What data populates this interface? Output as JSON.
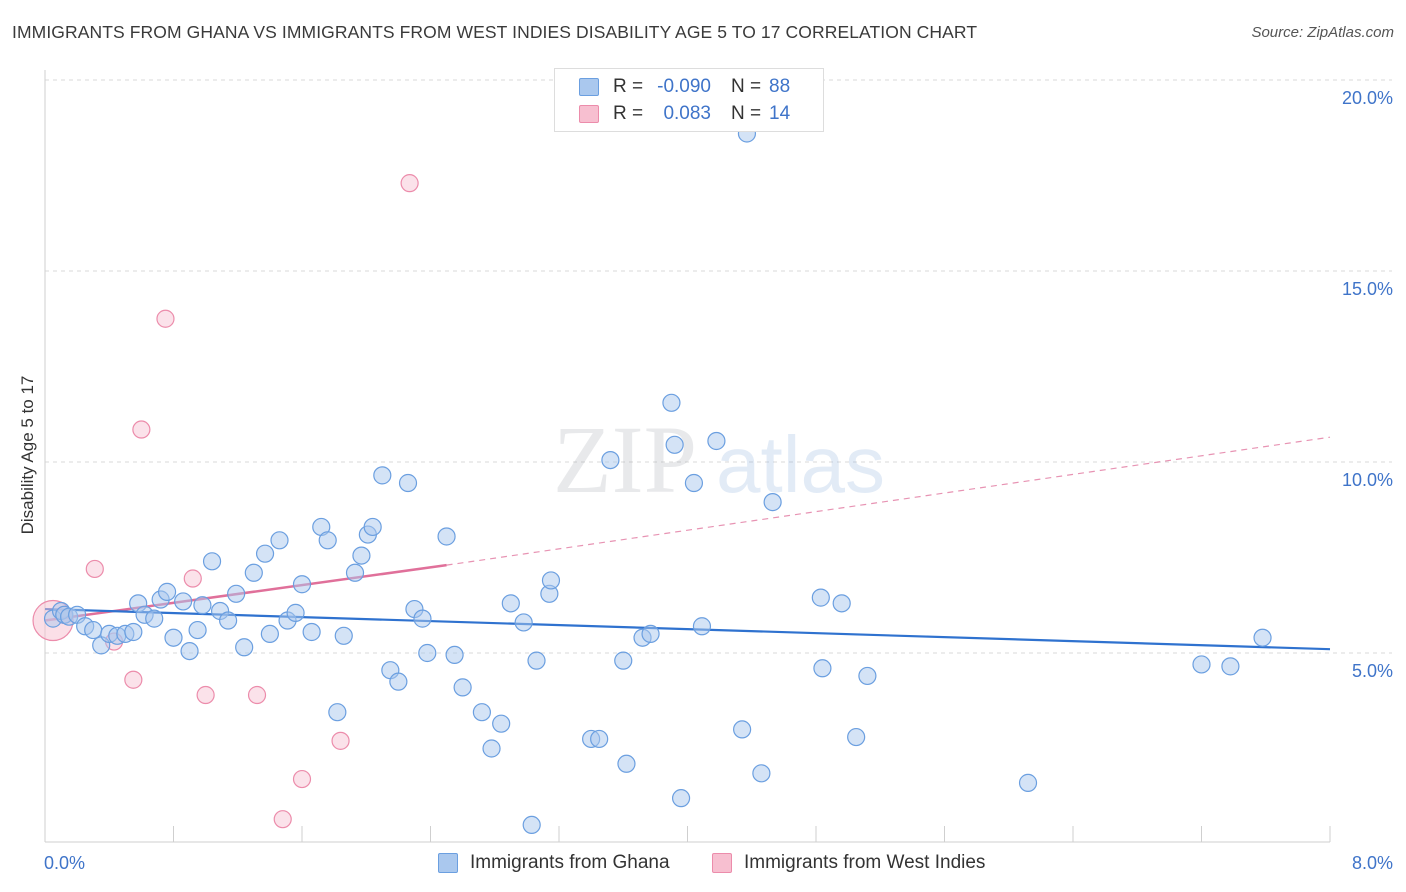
{
  "title": "IMMIGRANTS FROM GHANA VS IMMIGRANTS FROM WEST INDIES DISABILITY AGE 5 TO 17 CORRELATION CHART",
  "source": "Source: ZipAtlas.com",
  "watermark": {
    "zip": "ZIP",
    "atlas": "atlas"
  },
  "legend": {
    "rows": [
      {
        "r_label": "R =",
        "r_value": "-0.090",
        "n_label": "N =",
        "n_value": "88"
      },
      {
        "r_label": "R =",
        "r_value": "0.083",
        "n_label": "N =",
        "n_value": "14"
      }
    ]
  },
  "bottom_legend": [
    "Immigrants from Ghana",
    "Immigrants from West Indies"
  ],
  "colors": {
    "ghana_fill": "#aac8ee",
    "ghana_stroke": "#6b9fe0",
    "ghana_line": "#2f72cf",
    "wi_fill": "#f7bfd0",
    "wi_stroke": "#ec8cab",
    "wi_line": "#e0709a",
    "axis_text": "#3f74c9",
    "grid": "#d9d9d9"
  },
  "chart_data": {
    "type": "scatter",
    "title": "IMMIGRANTS FROM GHANA VS IMMIGRANTS FROM WEST INDIES DISABILITY AGE 5 TO 17 CORRELATION CHART",
    "xlabel": "",
    "ylabel": "Disability Age 5 to 17",
    "xlim": [
      0,
      8
    ],
    "ylim": [
      0,
      20.5
    ],
    "x_tick_labels": [
      "0.0%",
      "8.0%"
    ],
    "y_ticks": [
      5,
      10,
      15,
      20
    ],
    "y_tick_labels": [
      "5.0%",
      "10.0%",
      "15.0%",
      "20.0%"
    ],
    "grid": "horizontal dashed",
    "legend_position": "top-center",
    "series": [
      {
        "name": "Immigrants from Ghana",
        "r": -0.09,
        "n": 88,
        "trend": {
          "x": [
            0,
            8
          ],
          "y": [
            6.15,
            5.1
          ]
        },
        "points": [
          [
            0.05,
            5.9
          ],
          [
            0.1,
            6.1
          ],
          [
            0.12,
            6.0
          ],
          [
            0.15,
            5.95
          ],
          [
            0.2,
            6.0
          ],
          [
            0.25,
            5.7
          ],
          [
            0.3,
            5.6
          ],
          [
            0.35,
            5.2
          ],
          [
            0.4,
            5.5
          ],
          [
            0.45,
            5.45
          ],
          [
            0.5,
            5.5
          ],
          [
            0.55,
            5.55
          ],
          [
            0.58,
            6.3
          ],
          [
            0.62,
            6.0
          ],
          [
            0.68,
            5.9
          ],
          [
            0.72,
            6.4
          ],
          [
            0.76,
            6.6
          ],
          [
            0.8,
            5.4
          ],
          [
            0.86,
            6.35
          ],
          [
            0.9,
            5.05
          ],
          [
            0.95,
            5.6
          ],
          [
            0.98,
            6.25
          ],
          [
            1.04,
            7.4
          ],
          [
            1.09,
            6.1
          ],
          [
            1.14,
            5.85
          ],
          [
            1.19,
            6.55
          ],
          [
            1.24,
            5.15
          ],
          [
            1.3,
            7.1
          ],
          [
            1.37,
            7.6
          ],
          [
            1.4,
            5.5
          ],
          [
            1.46,
            7.95
          ],
          [
            1.51,
            5.85
          ],
          [
            1.56,
            6.05
          ],
          [
            1.6,
            6.8
          ],
          [
            1.66,
            5.55
          ],
          [
            1.72,
            8.3
          ],
          [
            1.76,
            7.95
          ],
          [
            1.82,
            3.45
          ],
          [
            1.86,
            5.45
          ],
          [
            1.93,
            7.1
          ],
          [
            1.97,
            7.55
          ],
          [
            2.01,
            8.1
          ],
          [
            2.04,
            8.3
          ],
          [
            2.1,
            9.65
          ],
          [
            2.15,
            4.55
          ],
          [
            2.2,
            4.25
          ],
          [
            2.26,
            9.45
          ],
          [
            2.3,
            6.15
          ],
          [
            2.35,
            5.9
          ],
          [
            2.38,
            5.0
          ],
          [
            2.5,
            8.05
          ],
          [
            2.55,
            4.95
          ],
          [
            2.6,
            4.1
          ],
          [
            2.72,
            3.45
          ],
          [
            2.78,
            2.5
          ],
          [
            2.84,
            3.15
          ],
          [
            2.9,
            6.3
          ],
          [
            2.98,
            5.8
          ],
          [
            3.03,
            0.5
          ],
          [
            3.06,
            4.8
          ],
          [
            3.14,
            6.55
          ],
          [
            3.15,
            6.9
          ],
          [
            3.4,
            2.75
          ],
          [
            3.45,
            2.75
          ],
          [
            3.52,
            10.05
          ],
          [
            3.6,
            4.8
          ],
          [
            3.62,
            2.1
          ],
          [
            3.72,
            5.4
          ],
          [
            3.77,
            5.5
          ],
          [
            3.9,
            11.55
          ],
          [
            3.92,
            10.45
          ],
          [
            3.96,
            1.2
          ],
          [
            4.04,
            9.45
          ],
          [
            4.09,
            5.7
          ],
          [
            4.18,
            10.55
          ],
          [
            4.34,
            3.0
          ],
          [
            4.37,
            18.6
          ],
          [
            4.46,
            1.85
          ],
          [
            4.53,
            8.95
          ],
          [
            4.83,
            6.45
          ],
          [
            4.84,
            4.6
          ],
          [
            4.96,
            6.3
          ],
          [
            5.05,
            2.8
          ],
          [
            5.12,
            4.4
          ],
          [
            6.12,
            1.6
          ],
          [
            7.2,
            4.7
          ],
          [
            7.38,
            4.65
          ],
          [
            7.58,
            5.4
          ]
        ]
      },
      {
        "name": "Immigrants from West Indies",
        "r": 0.083,
        "n": 14,
        "trend": {
          "x": [
            0,
            2.5
          ],
          "y": [
            5.85,
            7.3
          ],
          "dashed_to": {
            "x": 8,
            "y": 10.65
          }
        },
        "points": [
          [
            0.05,
            5.85
          ],
          [
            0.31,
            7.2
          ],
          [
            0.43,
            5.3
          ],
          [
            0.55,
            4.3
          ],
          [
            0.6,
            10.85
          ],
          [
            0.75,
            13.75
          ],
          [
            0.92,
            6.95
          ],
          [
            1.0,
            3.9
          ],
          [
            1.32,
            3.9
          ],
          [
            1.48,
            0.65
          ],
          [
            1.6,
            1.7
          ],
          [
            1.84,
            2.7
          ],
          [
            2.27,
            17.3
          ],
          [
            0.12,
            6.0
          ]
        ]
      }
    ]
  }
}
